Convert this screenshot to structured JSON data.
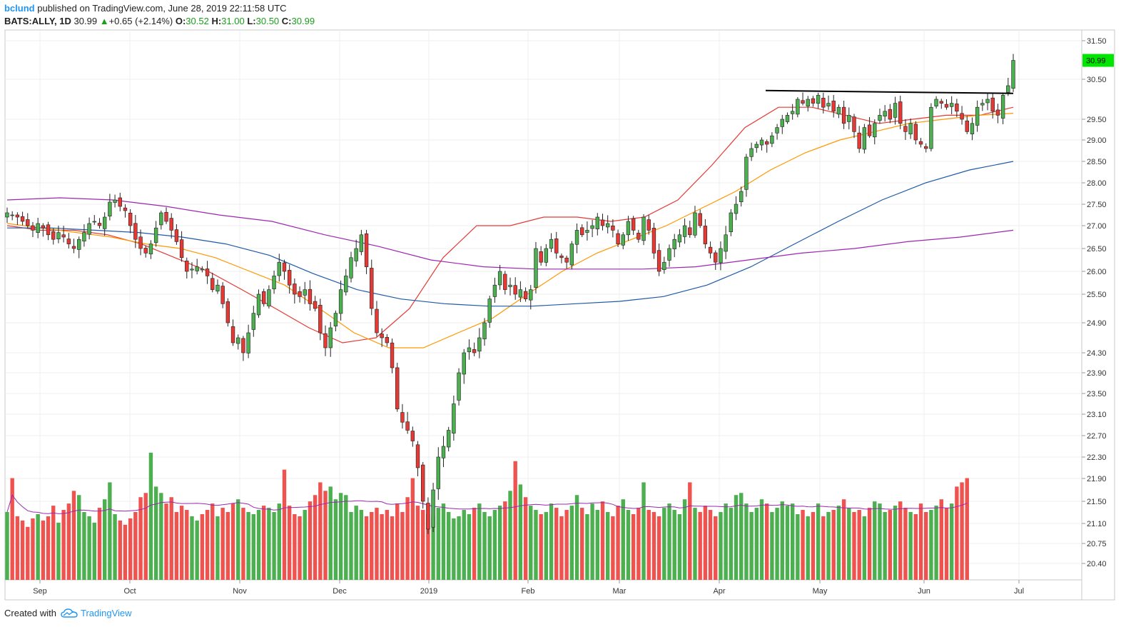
{
  "header": {
    "author": "bclund",
    "published_text": "published on TradingView.com, June 28, 2019 22:11:58 UTC",
    "symbol": "BATS:ALLY, 1D",
    "last": "30.99",
    "change_arrow": "▲",
    "change": "+0.65 (+2.14%)",
    "o_label": "O:",
    "o_value": "30.52",
    "h_label": "H:",
    "h_value": "31.00",
    "l_label": "L:",
    "l_value": "30.50",
    "c_label": "C:",
    "c_value": "30.99"
  },
  "footer": {
    "created_with": "Created with",
    "brand": "TradingView",
    "logo_icon": "tradingview-cloud-icon"
  },
  "colors": {
    "up": "#4caf50",
    "down": "#e53935",
    "up_volume": "#4caf50",
    "down_volume": "#ef5350",
    "ma20": "#e53935",
    "ma50": "#ff9800",
    "ma100": "#1e5aa8",
    "ma200": "#9c27b0",
    "volume_ma": "#9c27b0",
    "last_price_bg": "#00e600",
    "trendline": "#000000"
  },
  "chart_data": {
    "type": "candlestick",
    "price_axis_ticks": [
      "31.50",
      "30.50",
      "29.50",
      "29.00",
      "28.50",
      "28.00",
      "27.50",
      "27.00",
      "26.50",
      "26.00",
      "25.50",
      "24.90",
      "24.30",
      "23.90",
      "23.50",
      "23.10",
      "22.70",
      "22.30",
      "21.90",
      "21.50",
      "21.10",
      "20.75",
      "20.40"
    ],
    "last_price_label": "30.99",
    "time_axis_labels": [
      "Sep",
      "Oct",
      "Nov",
      "Dec",
      "2019",
      "Feb",
      "Mar",
      "Apr",
      "May",
      "Jun",
      "Jul"
    ],
    "trendline": {
      "value": 30.2,
      "from": "2019-04-15",
      "to": "2019-06-28"
    },
    "closes": [
      27.3,
      27.25,
      27.2,
      27.1,
      27.0,
      26.9,
      27.05,
      26.95,
      26.8,
      26.7,
      26.85,
      26.75,
      26.6,
      26.5,
      26.7,
      26.85,
      27.05,
      27.1,
      27.0,
      27.2,
      27.55,
      27.6,
      27.45,
      27.35,
      27.0,
      26.7,
      26.5,
      26.4,
      26.6,
      26.95,
      27.3,
      27.1,
      26.9,
      26.65,
      26.3,
      26.0,
      26.05,
      26.1,
      26.05,
      25.9,
      25.6,
      25.7,
      25.3,
      24.9,
      24.5,
      24.6,
      24.3,
      24.7,
      25.1,
      25.5,
      25.3,
      25.6,
      25.9,
      26.2,
      26.0,
      25.7,
      25.5,
      25.45,
      25.6,
      25.3,
      25.2,
      24.7,
      24.4,
      24.8,
      25.1,
      25.6,
      25.9,
      26.3,
      26.5,
      26.8,
      26.1,
      25.2,
      24.7,
      24.6,
      24.5,
      24.0,
      23.2,
      22.95,
      22.8,
      22.6,
      22.1,
      21.5,
      21.0,
      21.7,
      22.3,
      22.5,
      22.8,
      23.3,
      23.9,
      24.3,
      24.4,
      24.3,
      24.6,
      24.9,
      25.4,
      25.7,
      26.0,
      25.6,
      25.7,
      25.5,
      25.6,
      25.4,
      25.6,
      26.5,
      26.2,
      26.5,
      26.7,
      26.4,
      26.3,
      26.2,
      26.6,
      26.9,
      26.8,
      26.9,
      27.0,
      27.2,
      27.0,
      27.05,
      26.9,
      26.6,
      26.8,
      27.1,
      26.9,
      26.7,
      27.2,
      26.9,
      26.4,
      26.0,
      26.2,
      26.5,
      26.7,
      26.8,
      27.0,
      26.8,
      27.3,
      27.0,
      26.6,
      26.4,
      26.2,
      26.5,
      26.8,
      27.3,
      27.5,
      27.8,
      28.6,
      28.8,
      28.9,
      29.0,
      28.9,
      29.1,
      29.3,
      29.5,
      29.6,
      29.7,
      30.0,
      29.9,
      30.0,
      29.9,
      30.1,
      29.8,
      29.9,
      29.7,
      29.8,
      29.4,
      29.6,
      29.2,
      28.8,
      29.3,
      29.1,
      29.4,
      29.6,
      29.7,
      29.5,
      29.9,
      29.4,
      29.2,
      29.4,
      29.0,
      28.9,
      28.8,
      29.8,
      30.0,
      29.9,
      29.8,
      29.9,
      29.7,
      29.5,
      29.2,
      29.4,
      29.8,
      29.9,
      30.0,
      29.7,
      29.6,
      30.1,
      30.34,
      30.99
    ],
    "opens_shown_by_color": "green = close >= open, red = close < open",
    "series": [
      {
        "name": "MA 20",
        "values": [
          27.0,
          26.9,
          26.9,
          26.8,
          26.6,
          26.3,
          26.0,
          25.6,
          25.2,
          24.8,
          24.5,
          24.6,
          25.2,
          26.3,
          27.0,
          27.0,
          27.2,
          27.2,
          27.1,
          27.2,
          27.6,
          28.4,
          29.3,
          29.8,
          29.8,
          29.6,
          29.4,
          29.5,
          29.6,
          29.6,
          29.8
        ]
      },
      {
        "name": "MA 50",
        "values": [
          27.05,
          26.95,
          26.85,
          26.75,
          26.6,
          26.5,
          26.3,
          26.0,
          25.7,
          25.2,
          24.7,
          24.4,
          24.4,
          24.7,
          25.0,
          25.5,
          26.0,
          26.4,
          26.7,
          27.0,
          27.4,
          27.8,
          28.3,
          28.7,
          29.0,
          29.2,
          29.4,
          29.5,
          29.6,
          29.65
        ]
      },
      {
        "name": "MA 100",
        "values": [
          26.95,
          26.95,
          26.9,
          26.85,
          26.75,
          26.6,
          26.35,
          25.95,
          25.6,
          25.4,
          25.3,
          25.25,
          25.25,
          25.3,
          25.35,
          25.45,
          25.7,
          26.1,
          26.6,
          27.1,
          27.6,
          28.0,
          28.3,
          28.5
        ]
      },
      {
        "name": "MA 200",
        "values": [
          27.6,
          27.65,
          27.6,
          27.45,
          27.25,
          27.1,
          26.8,
          26.55,
          26.25,
          26.1,
          26.05,
          26.05,
          26.05,
          26.1,
          26.25,
          26.4,
          26.5,
          26.65,
          26.75,
          26.9
        ]
      },
      {
        "name": "Volume",
        "values": [
          3.2,
          4.8,
          3.0,
          2.8,
          2.5,
          2.9,
          3.1,
          2.8,
          3.0,
          3.5,
          2.7,
          3.3,
          3.6,
          4.2,
          4.0,
          3.2,
          3.0,
          2.7,
          3.4,
          3.8,
          4.6,
          3.1,
          2.8,
          2.6,
          2.9,
          3.2,
          3.9,
          4.1,
          6.0,
          4.4,
          4.1,
          3.6,
          3.9,
          3.2,
          3.5,
          3.3,
          3.0,
          2.8,
          3.1,
          3.3,
          3.6,
          3.0,
          3.4,
          3.2,
          3.6,
          3.8,
          3.4,
          3.2,
          3.1,
          3.3,
          3.5,
          3.4,
          3.2,
          3.6,
          5.2,
          3.5,
          3.1,
          3.0,
          3.3,
          3.7,
          4.0,
          4.6,
          4.2,
          4.4,
          3.8,
          4.1,
          4.0,
          3.2,
          3.5,
          3.3,
          3.0,
          3.2,
          3.4,
          3.1,
          3.3,
          3.0,
          3.6,
          3.2,
          3.9,
          4.8,
          3.5,
          3.3,
          3.1,
          3.0,
          3.4,
          3.6,
          3.2,
          2.9,
          3.0,
          3.3,
          3.1,
          3.4,
          3.6,
          3.2,
          3.0,
          3.3,
          3.5,
          3.7,
          4.2,
          5.6,
          4.5,
          3.9,
          3.5,
          3.3,
          3.1,
          3.2,
          3.6,
          3.4,
          3.0,
          3.3,
          3.5,
          4.0,
          3.4,
          3.1,
          3.6,
          3.3,
          3.7,
          3.2,
          3.0,
          3.5,
          3.8,
          3.3,
          3.1,
          3.4,
          4.6,
          3.3,
          3.2,
          3.0,
          3.4,
          3.6,
          3.3,
          3.1,
          3.8,
          4.6,
          3.4,
          3.2,
          3.5,
          3.3,
          3.0,
          3.2,
          3.6,
          3.4,
          4.0,
          4.1,
          3.6,
          3.2,
          3.4,
          3.8,
          3.6,
          3.2,
          3.4,
          3.7,
          3.5,
          3.6,
          3.1,
          3.3,
          3.0,
          3.2,
          3.6,
          3.0,
          3.2,
          3.3,
          3.5,
          3.8,
          3.4,
          3.2,
          3.3,
          3.0,
          3.4,
          3.7,
          3.6,
          3.2,
          3.3,
          3.5,
          3.7,
          3.4,
          3.2,
          3.1,
          3.6,
          3.2,
          3.3,
          3.5,
          3.8,
          3.4,
          3.6,
          4.4,
          4.6,
          4.8
        ]
      }
    ]
  }
}
